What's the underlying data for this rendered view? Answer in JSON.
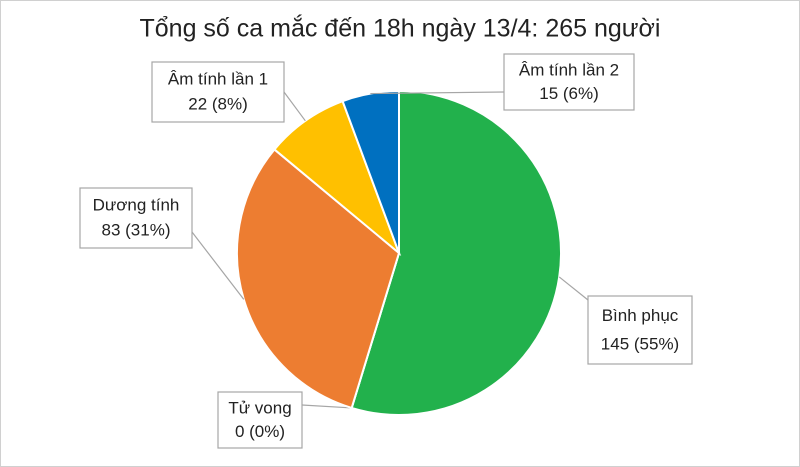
{
  "chart_data": {
    "type": "pie",
    "title": "Tổng số ca mắc đến 18h ngày 13/4: 265 người",
    "categories": [
      "Bình phục",
      "Tử vong",
      "Dương tính",
      "Âm tính lần 1",
      "Âm tính lần 2"
    ],
    "values": [
      145,
      0,
      83,
      22,
      15
    ],
    "value_labels": [
      "145 (55%)",
      "0 (0%)",
      "83 (31%)",
      "22 (8%)",
      "15 (6%)"
    ],
    "colors": [
      "#22b14c",
      "#a5a5a5",
      "#ed7d31",
      "#ffc000",
      "#0070c0"
    ]
  }
}
